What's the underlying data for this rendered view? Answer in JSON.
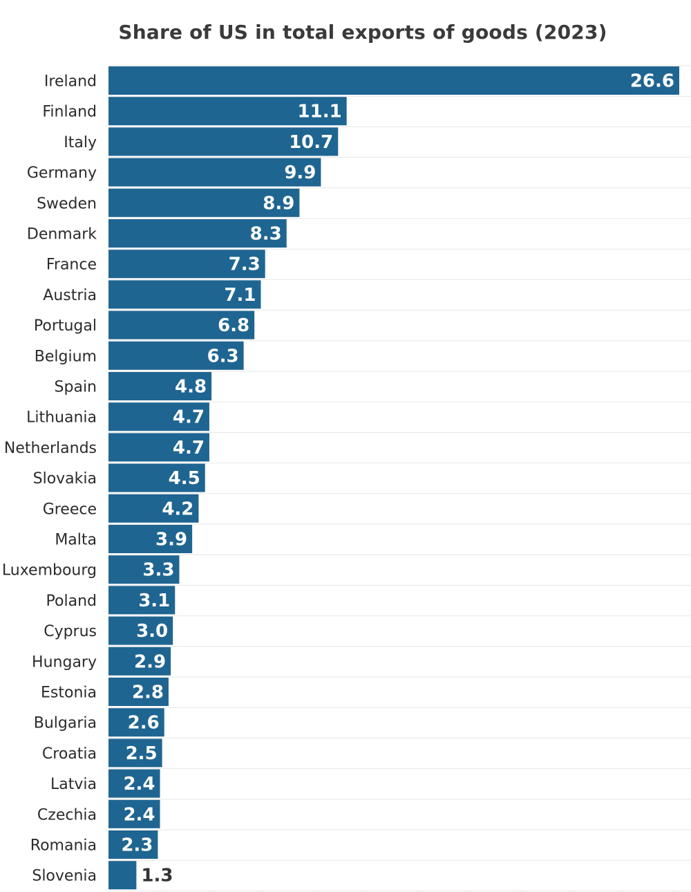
{
  "chart_data": {
    "type": "bar",
    "orientation": "horizontal",
    "title": "Share of US in total exports of goods (2023)",
    "xlabel": "",
    "ylabel": "",
    "categories": [
      "Ireland",
      "Finland",
      "Italy",
      "Germany",
      "Sweden",
      "Denmark",
      "France",
      "Austria",
      "Portugal",
      "Belgium",
      "Spain",
      "Lithuania",
      "Netherlands",
      "Slovakia",
      "Greece",
      "Malta",
      "Luxembourg",
      "Poland",
      "Cyprus",
      "Hungary",
      "Estonia",
      "Bulgaria",
      "Croatia",
      "Latvia",
      "Czechia",
      "Romania",
      "Slovenia"
    ],
    "values": [
      26.6,
      11.1,
      10.7,
      9.9,
      8.9,
      8.3,
      7.3,
      7.1,
      6.8,
      6.3,
      4.8,
      4.7,
      4.7,
      4.5,
      4.2,
      3.9,
      3.3,
      3.1,
      3.0,
      2.9,
      2.8,
      2.6,
      2.5,
      2.4,
      2.4,
      2.3,
      1.3
    ],
    "value_labels": [
      "26.6",
      "11.1",
      "10.7",
      "9.9",
      "8.9",
      "8.3",
      "7.3",
      "7.1",
      "6.8",
      "6.3",
      "4.8",
      "4.7",
      "4.7",
      "4.5",
      "4.2",
      "3.9",
      "3.3",
      "3.1",
      "3.0",
      "2.9",
      "2.8",
      "2.6",
      "2.5",
      "2.4",
      "2.4",
      "2.3",
      "1.3"
    ],
    "xlim": [
      0,
      26.6
    ],
    "grid": true,
    "legend": "none",
    "colors": {
      "bar": "#1f6591",
      "label_inside": "#ffffff",
      "label_outside": "#333333",
      "grid": "#e6e6e6"
    }
  }
}
